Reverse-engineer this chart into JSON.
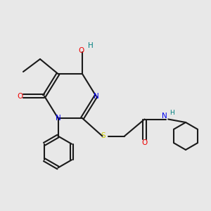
{
  "bg_color": "#e8e8e8",
  "bond_color": "#1a1a1a",
  "N_color": "#0000ee",
  "O_color": "#ee0000",
  "S_color": "#cccc00",
  "H_color": "#008080",
  "lw": 1.5,
  "lw_double": 1.5,
  "fig_width": 3.0,
  "fig_height": 3.0,
  "dpi": 100,
  "xlim": [
    0,
    10
  ],
  "ylim": [
    0,
    10
  ]
}
